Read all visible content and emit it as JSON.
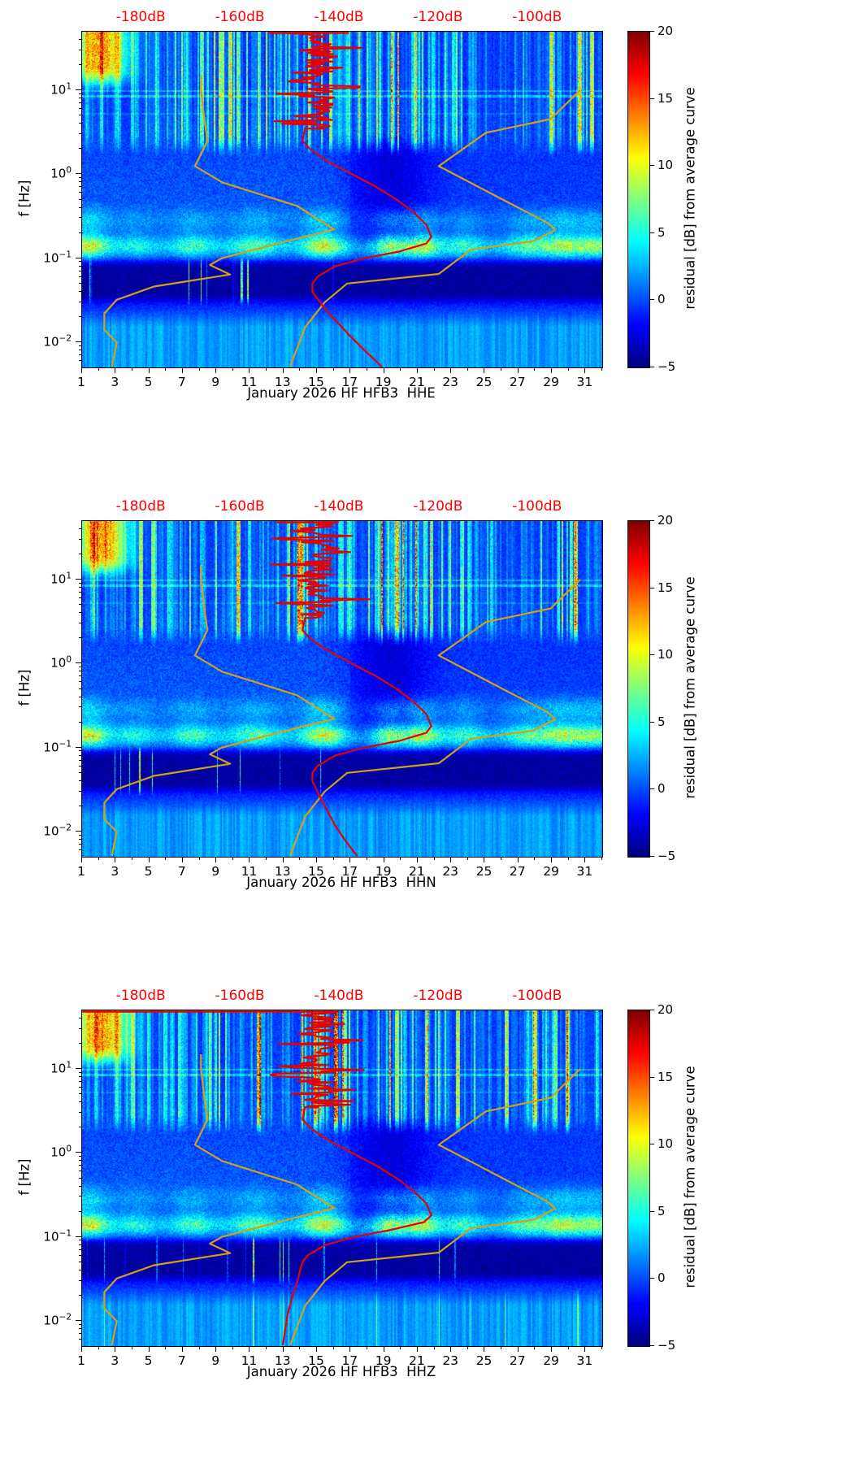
{
  "figure": {
    "background": "#ffffff",
    "accent_colors": {
      "top_axis_red": "#ff0000",
      "mean_curve_red": "#e60000",
      "model_curve_yellow": "#d4a017"
    }
  },
  "chart_data": [
    {
      "type": "heatmap",
      "subtype": "seismic-noise-spectrogram",
      "xlabel": "January 2026 HF HFB3  HHE",
      "ylabel": "f [Hz]",
      "x_axis": {
        "label_values": [
          1,
          3,
          5,
          7,
          9,
          11,
          13,
          15,
          17,
          19,
          21,
          23,
          25,
          27,
          29,
          31
        ],
        "range_days": [
          1,
          32
        ]
      },
      "y_axis": {
        "scale": "log",
        "range_hz": [
          0.005,
          50
        ],
        "tick_values_hz": [
          0.01,
          0.1,
          1,
          10
        ],
        "tick_labels": [
          "10⁻²",
          "10⁻¹",
          "10⁰",
          "10¹"
        ]
      },
      "top_axis": {
        "color": "#ff0000",
        "tick_labels": [
          "-180dB",
          "-160dB",
          "-140dB",
          "-120dB",
          "-100dB"
        ],
        "tick_values_db": [
          -180,
          -160,
          -140,
          -120,
          -100
        ],
        "db_at_day_1": -192,
        "db_at_day_32": -87
      },
      "colorbar": {
        "label": "residual [dB] from average curve",
        "range": [
          -5,
          20
        ],
        "tick_values": [
          20,
          15,
          10,
          5,
          0,
          -5
        ],
        "tick_labels": [
          "20",
          "15",
          "10",
          "5",
          "0",
          "−5"
        ],
        "colormap": "jet"
      },
      "red_top_span_days": [
        12.1,
        16.9
      ],
      "series": [
        {
          "name": "station-average-psd",
          "color": "#e60000",
          "axis": "top-db",
          "noisy_above_hz": 3.5,
          "points_hz_db": [
            [
              3.5,
              -147
            ],
            [
              2.5,
              -147.5
            ],
            [
              2,
              -146
            ],
            [
              1.5,
              -143
            ],
            [
              1,
              -137.5
            ],
            [
              0.7,
              -132.5
            ],
            [
              0.5,
              -128.5
            ],
            [
              0.35,
              -125
            ],
            [
              0.25,
              -122.5
            ],
            [
              0.18,
              -121.5
            ],
            [
              0.15,
              -122.5
            ],
            [
              0.12,
              -128
            ],
            [
              0.1,
              -135
            ],
            [
              0.08,
              -141
            ],
            [
              0.06,
              -144.5
            ],
            [
              0.05,
              -145.5
            ],
            [
              0.04,
              -145.5
            ],
            [
              0.03,
              -144
            ],
            [
              0.02,
              -141.5
            ],
            [
              0.012,
              -138
            ],
            [
              0.008,
              -135
            ],
            [
              0.005,
              -131.5
            ]
          ]
        },
        {
          "name": "low-noise-model",
          "color": "#d4a017",
          "axis": "top-db",
          "points_hz_db": [
            [
              15,
              -168
            ],
            [
              10,
              -168
            ],
            [
              4,
              -167.2
            ],
            [
              2.5,
              -166.7
            ],
            [
              1.25,
              -169.2
            ],
            [
              0.8,
              -163.7
            ],
            [
              0.42,
              -148.6
            ],
            [
              0.22,
              -141.1
            ],
            [
              0.167,
              -149.4
            ],
            [
              0.1,
              -163.8
            ],
            [
              0.083,
              -166.2
            ],
            [
              0.064,
              -162.1
            ],
            [
              0.046,
              -177.5
            ],
            [
              0.032,
              -185
            ],
            [
              0.022,
              -187.5
            ],
            [
              0.014,
              -187.5
            ],
            [
              0.0099,
              -185
            ],
            [
              0.005,
              -186
            ]
          ]
        },
        {
          "name": "high-noise-model",
          "color": "#d4a017",
          "axis": "top-db",
          "points_hz_db": [
            [
              10,
              -91.5
            ],
            [
              4.55,
              -97.4
            ],
            [
              3.13,
              -110.5
            ],
            [
              1.25,
              -120
            ],
            [
              0.5,
              -107.1
            ],
            [
              0.263,
              -98
            ],
            [
              0.217,
              -96.5
            ],
            [
              0.159,
              -101
            ],
            [
              0.127,
              -113.5
            ],
            [
              0.065,
              -120
            ],
            [
              0.05,
              -138.5
            ],
            [
              0.03,
              -143
            ],
            [
              0.015,
              -147
            ],
            [
              0.005,
              -150
            ]
          ]
        }
      ]
    },
    {
      "type": "heatmap",
      "subtype": "seismic-noise-spectrogram",
      "xlabel": "January 2026 HF HFB3  HHN",
      "ylabel": "f [Hz]",
      "x_axis": {
        "label_values": [
          1,
          3,
          5,
          7,
          9,
          11,
          13,
          15,
          17,
          19,
          21,
          23,
          25,
          27,
          29,
          31
        ],
        "range_days": [
          1,
          32
        ]
      },
      "y_axis": {
        "scale": "log",
        "range_hz": [
          0.005,
          50
        ],
        "tick_values_hz": [
          0.01,
          0.1,
          1,
          10
        ],
        "tick_labels": [
          "10⁻²",
          "10⁻¹",
          "10⁰",
          "10¹"
        ]
      },
      "top_axis": {
        "color": "#ff0000",
        "tick_labels": [
          "-180dB",
          "-160dB",
          "-140dB",
          "-120dB",
          "-100dB"
        ],
        "tick_values_db": [
          -180,
          -160,
          -140,
          -120,
          -100
        ],
        "db_at_day_1": -192,
        "db_at_day_32": -87
      },
      "colorbar": {
        "label": "residual [dB] from average curve",
        "range": [
          -5,
          20
        ],
        "tick_values": [
          20,
          15,
          10,
          5,
          0,
          -5
        ],
        "tick_labels": [
          "20",
          "15",
          "10",
          "5",
          "0",
          "−5"
        ],
        "colormap": "jet"
      },
      "red_top_span_days": [
        12.6,
        16.3
      ],
      "series": [
        {
          "name": "station-average-psd",
          "color": "#e60000",
          "axis": "top-db",
          "noisy_above_hz": 3.5,
          "points_hz_db": [
            [
              3.5,
              -147
            ],
            [
              2.5,
              -147.5
            ],
            [
              2,
              -146
            ],
            [
              1.5,
              -143
            ],
            [
              1,
              -137.5
            ],
            [
              0.7,
              -132.5
            ],
            [
              0.5,
              -128.5
            ],
            [
              0.35,
              -125
            ],
            [
              0.25,
              -122.5
            ],
            [
              0.18,
              -121.5
            ],
            [
              0.15,
              -122.5
            ],
            [
              0.12,
              -128
            ],
            [
              0.1,
              -135
            ],
            [
              0.08,
              -141
            ],
            [
              0.06,
              -144.5
            ],
            [
              0.05,
              -145.5
            ],
            [
              0.04,
              -145.5
            ],
            [
              0.03,
              -144.5
            ],
            [
              0.02,
              -143
            ],
            [
              0.012,
              -141
            ],
            [
              0.008,
              -139
            ],
            [
              0.005,
              -136.5
            ]
          ]
        },
        {
          "name": "low-noise-model",
          "color": "#d4a017",
          "axis": "top-db",
          "points_hz_db": [
            [
              15,
              -168
            ],
            [
              10,
              -168
            ],
            [
              4,
              -167.2
            ],
            [
              2.5,
              -166.7
            ],
            [
              1.25,
              -169.2
            ],
            [
              0.8,
              -163.7
            ],
            [
              0.42,
              -148.6
            ],
            [
              0.22,
              -141.1
            ],
            [
              0.167,
              -149.4
            ],
            [
              0.1,
              -163.8
            ],
            [
              0.083,
              -166.2
            ],
            [
              0.064,
              -162.1
            ],
            [
              0.046,
              -177.5
            ],
            [
              0.032,
              -185
            ],
            [
              0.022,
              -187.5
            ],
            [
              0.014,
              -187.5
            ],
            [
              0.0099,
              -185
            ],
            [
              0.005,
              -186
            ]
          ]
        },
        {
          "name": "high-noise-model",
          "color": "#d4a017",
          "axis": "top-db",
          "points_hz_db": [
            [
              10,
              -91.5
            ],
            [
              4.55,
              -97.4
            ],
            [
              3.13,
              -110.5
            ],
            [
              1.25,
              -120
            ],
            [
              0.5,
              -107.1
            ],
            [
              0.263,
              -98
            ],
            [
              0.217,
              -96.5
            ],
            [
              0.159,
              -101
            ],
            [
              0.127,
              -113.5
            ],
            [
              0.065,
              -120
            ],
            [
              0.05,
              -138.5
            ],
            [
              0.03,
              -143
            ],
            [
              0.015,
              -147
            ],
            [
              0.005,
              -150
            ]
          ]
        }
      ]
    },
    {
      "type": "heatmap",
      "subtype": "seismic-noise-spectrogram",
      "xlabel": "January 2026 HF HFB3  HHZ",
      "ylabel": "f [Hz]",
      "x_axis": {
        "label_values": [
          1,
          3,
          5,
          7,
          9,
          11,
          13,
          15,
          17,
          19,
          21,
          23,
          25,
          27,
          29,
          31
        ],
        "range_days": [
          1,
          32
        ]
      },
      "y_axis": {
        "scale": "log",
        "range_hz": [
          0.005,
          50
        ],
        "tick_values_hz": [
          0.01,
          0.1,
          1,
          10
        ],
        "tick_labels": [
          "10⁻²",
          "10⁻¹",
          "10⁰",
          "10¹"
        ]
      },
      "top_axis": {
        "color": "#ff0000",
        "tick_labels": [
          "-180dB",
          "-160dB",
          "-140dB",
          "-120dB",
          "-100dB"
        ],
        "tick_values_db": [
          -180,
          -160,
          -140,
          -120,
          -100
        ],
        "db_at_day_1": -192,
        "db_at_day_32": -87
      },
      "colorbar": {
        "label": "residual [dB] from average curve",
        "range": [
          -5,
          20
        ],
        "tick_values": [
          20,
          15,
          10,
          5,
          0,
          -5
        ],
        "tick_labels": [
          "20",
          "15",
          "10",
          "5",
          "0",
          "−5"
        ],
        "colormap": "jet"
      },
      "red_top_span_days": [
        1.0,
        16.3
      ],
      "series": [
        {
          "name": "station-average-psd",
          "color": "#e60000",
          "axis": "top-db",
          "noisy_above_hz": 3.5,
          "points_hz_db": [
            [
              3.5,
              -147
            ],
            [
              2.5,
              -147.5
            ],
            [
              2,
              -146
            ],
            [
              1.5,
              -143
            ],
            [
              1,
              -137.5
            ],
            [
              0.7,
              -132.5
            ],
            [
              0.5,
              -128.5
            ],
            [
              0.35,
              -125
            ],
            [
              0.25,
              -122.5
            ],
            [
              0.18,
              -121.5
            ],
            [
              0.15,
              -123
            ],
            [
              0.12,
              -130
            ],
            [
              0.1,
              -137
            ],
            [
              0.08,
              -143
            ],
            [
              0.06,
              -146.5
            ],
            [
              0.05,
              -147.5
            ],
            [
              0.04,
              -148
            ],
            [
              0.03,
              -148.5
            ],
            [
              0.02,
              -149.5
            ],
            [
              0.012,
              -150.5
            ],
            [
              0.005,
              -151.5
            ]
          ]
        },
        {
          "name": "low-noise-model",
          "color": "#d4a017",
          "axis": "top-db",
          "points_hz_db": [
            [
              15,
              -168
            ],
            [
              10,
              -168
            ],
            [
              4,
              -167.2
            ],
            [
              2.5,
              -166.7
            ],
            [
              1.25,
              -169.2
            ],
            [
              0.8,
              -163.7
            ],
            [
              0.42,
              -148.6
            ],
            [
              0.22,
              -141.1
            ],
            [
              0.167,
              -149.4
            ],
            [
              0.1,
              -163.8
            ],
            [
              0.083,
              -166.2
            ],
            [
              0.064,
              -162.1
            ],
            [
              0.046,
              -177.5
            ],
            [
              0.032,
              -185
            ],
            [
              0.022,
              -187.5
            ],
            [
              0.014,
              -187.5
            ],
            [
              0.0099,
              -185
            ],
            [
              0.005,
              -186
            ]
          ]
        },
        {
          "name": "high-noise-model",
          "color": "#d4a017",
          "axis": "top-db",
          "points_hz_db": [
            [
              10,
              -91.5
            ],
            [
              4.55,
              -97.4
            ],
            [
              3.13,
              -110.5
            ],
            [
              1.25,
              -120
            ],
            [
              0.5,
              -107.1
            ],
            [
              0.263,
              -98
            ],
            [
              0.217,
              -96.5
            ],
            [
              0.159,
              -101
            ],
            [
              0.127,
              -113.5
            ],
            [
              0.065,
              -120
            ],
            [
              0.05,
              -138.5
            ],
            [
              0.03,
              -143
            ],
            [
              0.015,
              -147
            ],
            [
              0.005,
              -150
            ]
          ]
        }
      ]
    }
  ]
}
